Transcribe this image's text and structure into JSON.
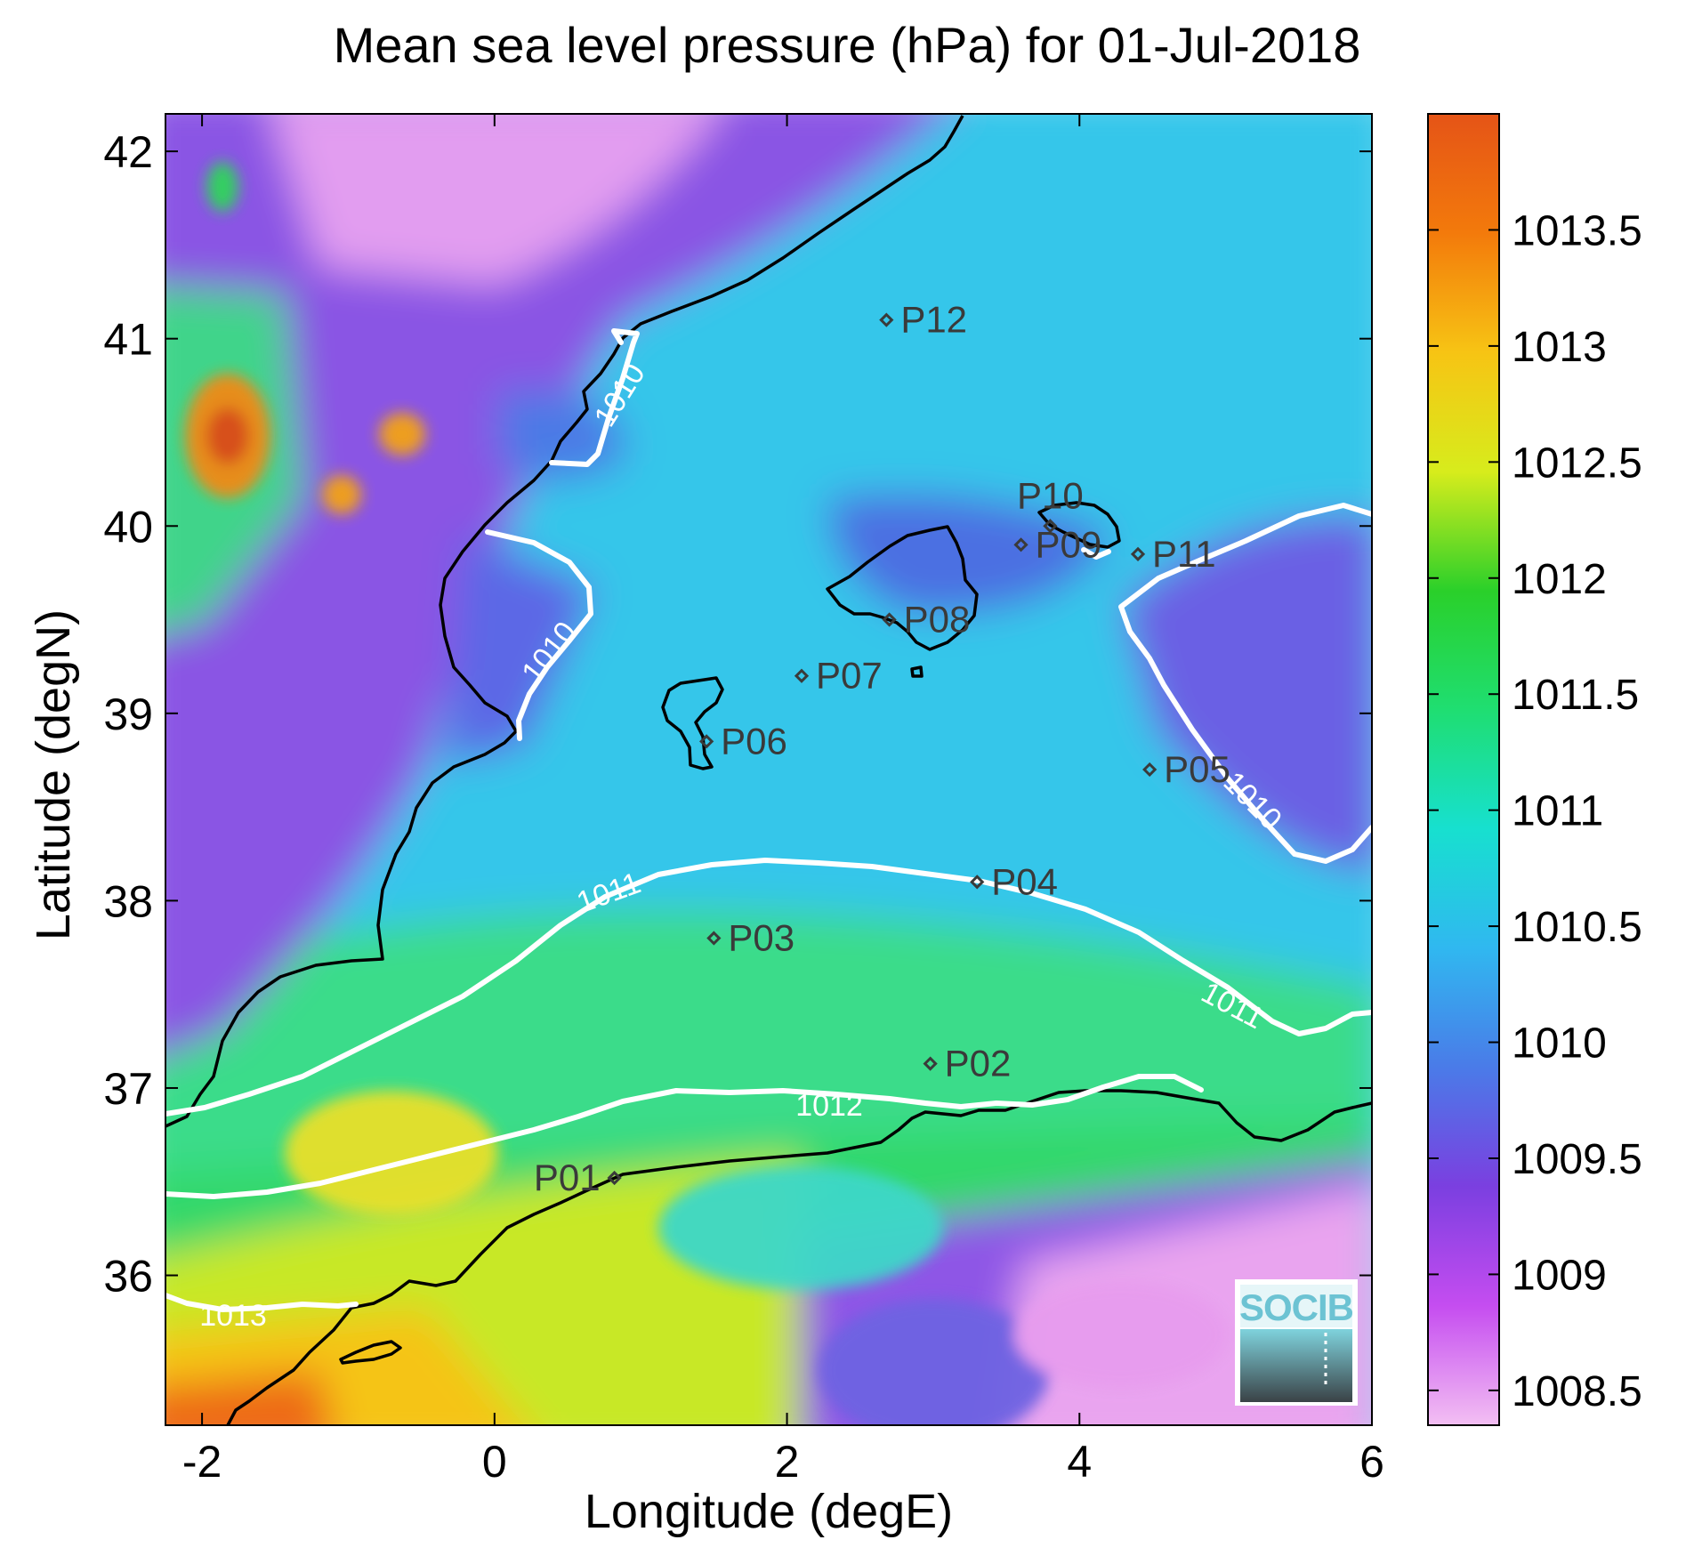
{
  "chart_data": {
    "type": "heatmap",
    "title": "Mean sea level pressure (hPa) for 01-Jul-2018",
    "xlabel": "Longitude (degE)",
    "ylabel": "Latitude (degN)",
    "xlim": [
      -2.25,
      6.0
    ],
    "ylim": [
      35.2,
      42.2
    ],
    "xticks": [
      -2,
      0,
      2,
      4,
      6
    ],
    "xtick_labels": [
      "-2",
      "0",
      "2",
      "4",
      "6"
    ],
    "yticks": [
      36,
      37,
      38,
      39,
      40,
      41,
      42
    ],
    "ytick_labels": [
      "36",
      "37",
      "38",
      "39",
      "40",
      "41",
      "42"
    ],
    "colorbar": {
      "range": [
        1008.35,
        1014.0
      ],
      "ticks": [
        1008.5,
        1009,
        1009.5,
        1010,
        1010.5,
        1011,
        1011.5,
        1012,
        1012.5,
        1013,
        1013.5
      ],
      "tick_labels": [
        "1008.5",
        "1009",
        "1009.5",
        "1010",
        "1010.5",
        "1011",
        "1011.5",
        "1012",
        "1012.5",
        "1013",
        "1013.5"
      ],
      "colors": [
        "#f3bff3",
        "#c54df0",
        "#7b3fe0",
        "#4a7be8",
        "#30b8f0",
        "#17e0cf",
        "#1fde72",
        "#2ad02a",
        "#d7ec1c",
        "#f7c414",
        "#f37a0b",
        "#e55417"
      ]
    },
    "contours": [
      {
        "level": 1010,
        "label": "1010"
      },
      {
        "level": 1011,
        "label": "1011"
      },
      {
        "level": 1012,
        "label": "1012"
      },
      {
        "level": 1013,
        "label": "1013"
      }
    ],
    "points": [
      {
        "name": "P01",
        "lon": 0.82,
        "lat": 36.52
      },
      {
        "name": "P02",
        "lon": 2.98,
        "lat": 37.13
      },
      {
        "name": "P03",
        "lon": 1.5,
        "lat": 37.8
      },
      {
        "name": "P04",
        "lon": 3.3,
        "lat": 38.1
      },
      {
        "name": "P05",
        "lon": 4.48,
        "lat": 38.7
      },
      {
        "name": "P06",
        "lon": 1.45,
        "lat": 38.85
      },
      {
        "name": "P07",
        "lon": 2.1,
        "lat": 39.2
      },
      {
        "name": "P08",
        "lon": 2.7,
        "lat": 39.5
      },
      {
        "name": "P09",
        "lon": 3.6,
        "lat": 39.9
      },
      {
        "name": "P10",
        "lon": 3.8,
        "lat": 40.0
      },
      {
        "name": "P11",
        "lon": 4.4,
        "lat": 39.85
      },
      {
        "name": "P12",
        "lon": 2.68,
        "lat": 41.1
      }
    ]
  },
  "logo": {
    "text": "SOCIB"
  }
}
